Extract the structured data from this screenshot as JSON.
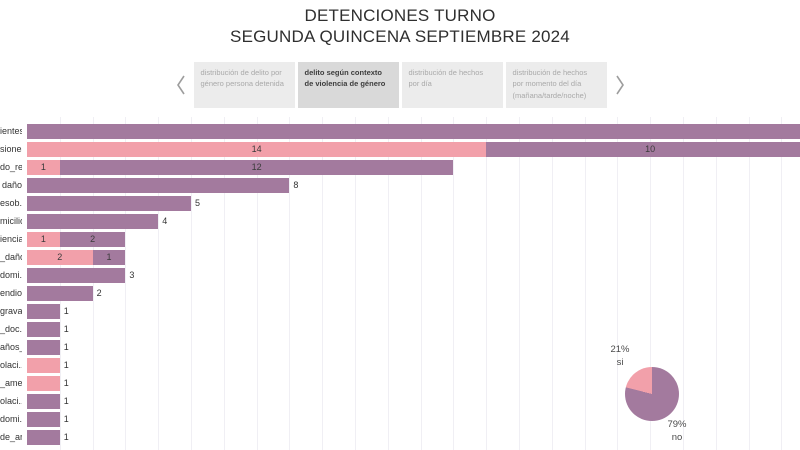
{
  "title": {
    "line1": "DETENCIONES TURNO",
    "line2": "SEGUNDA QUINCENA SEPTIEMBRE 2024"
  },
  "tabs": {
    "items": [
      {
        "label": "distribución de delito por género persona detenida",
        "active": false
      },
      {
        "label": "delito según contexto de violencia de género",
        "active": true
      },
      {
        "label": "distribución de hechos por día",
        "active": false
      },
      {
        "label": "distribución de hechos por momento del día (mañana/tarde/noche)",
        "active": false
      }
    ]
  },
  "colors": {
    "pink": "#f2a0aa",
    "purple": "#a37a9e",
    "grid": "#f0eff4",
    "tab_active_bg": "#d9d9d9",
    "tab_inactive_bg": "#ececec",
    "chevron": "#9d9d9d"
  },
  "chart_data": [
    {
      "type": "bar",
      "orientation": "horizontal_stacked",
      "title": "",
      "xlabel": "",
      "ylabel": "",
      "legend_visible": false,
      "x_axis": {
        "min": 0,
        "visible_max": 23.5,
        "gridline_step": 1,
        "gridline_count": 23,
        "tick_labels_visible": false
      },
      "notes": "Category labels are clipped at the left edge of the viewport; bars of rows 1 and 2 run past the right edge (clipped). Pink = contexto violencia de género sí, purple = no.",
      "categories": [
        "ientes",
        "siones",
        "do_re..",
        "daño",
        "esob..",
        "micilio",
        "iencia",
        "_daño",
        "domi..",
        "endio",
        "grava..",
        "_doc..",
        "años_..",
        "olaci..",
        "_ame..",
        "olaci..",
        "domi..",
        "de_ar.."
      ],
      "series": [
        {
          "name": "sí (violencia de género)",
          "color_key": "pink",
          "values": [
            0,
            14,
            1,
            0,
            0,
            0,
            1,
            2,
            0,
            0,
            0,
            0,
            0,
            1,
            1,
            0,
            0,
            0
          ]
        },
        {
          "name": "no (violencia de género)",
          "color_key": "purple",
          "values": [
            null,
            10,
            12,
            8,
            5,
            4,
            2,
            1,
            3,
            2,
            1,
            1,
            1,
            0,
            0,
            1,
            1,
            1
          ]
        }
      ],
      "clipped_row_render_units": 24.3
    },
    {
      "type": "pie",
      "title": "",
      "slices": [
        {
          "label": "si",
          "value_pct": 21,
          "pct_label": "21%",
          "color_key": "pink"
        },
        {
          "label": "no",
          "value_pct": 79,
          "pct_label": "79%",
          "color_key": "purple"
        }
      ]
    }
  ]
}
